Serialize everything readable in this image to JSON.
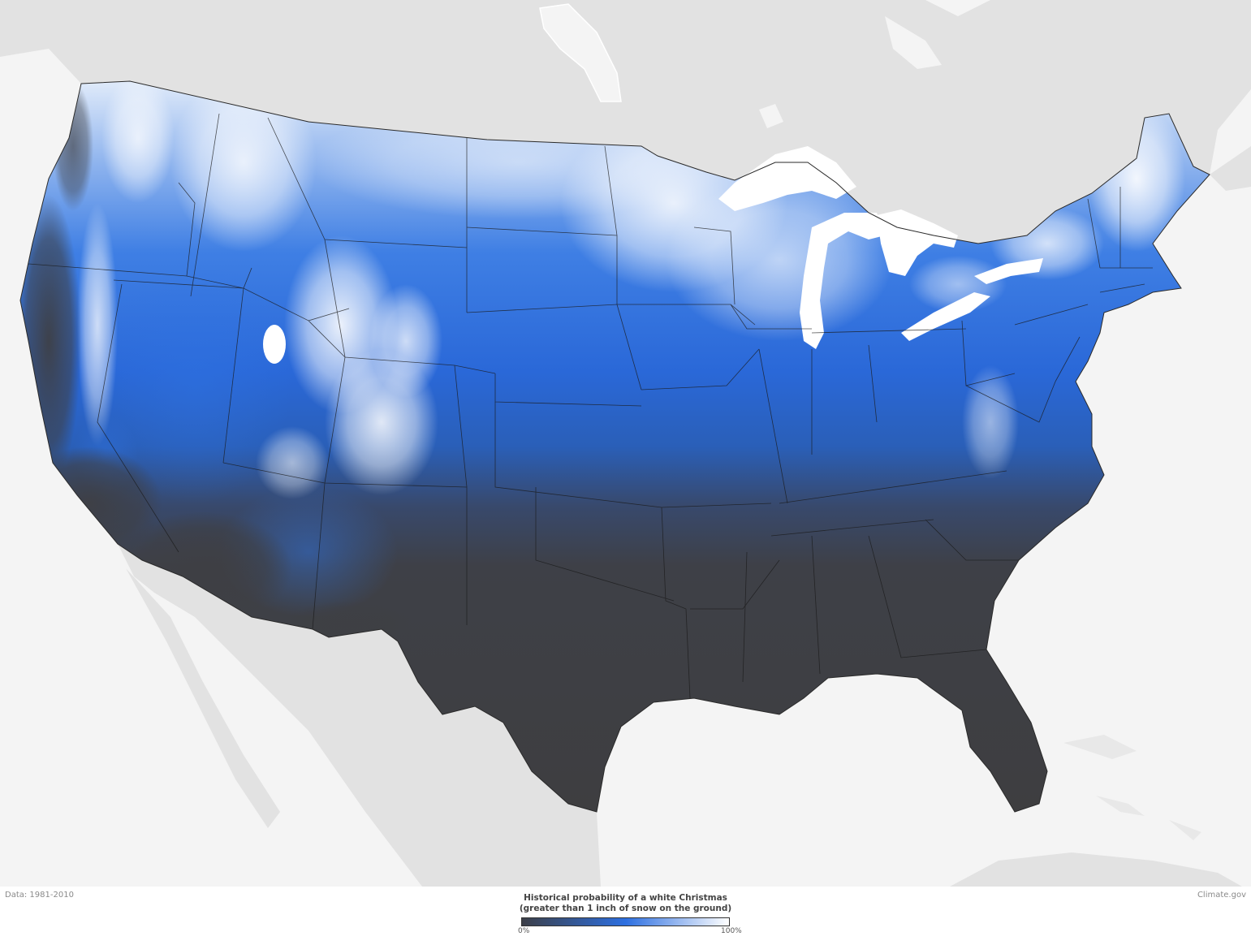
{
  "map": {
    "colors": {
      "ocean": "#f4f4f4",
      "land_outside": "#e2e2e2",
      "low": "#3c3f48",
      "mid": "#2d6fe0",
      "high": "#ffffff",
      "borders": "#1a1a1a"
    }
  },
  "footer": {
    "data_credit": "Data: 1981-2010",
    "source_credit": "Climate.gov"
  },
  "legend": {
    "title": "Historical probability of a white Christmas",
    "subtitle": "(greater than 1 inch of snow on the ground)",
    "min_label": "0%",
    "max_label": "100%"
  }
}
